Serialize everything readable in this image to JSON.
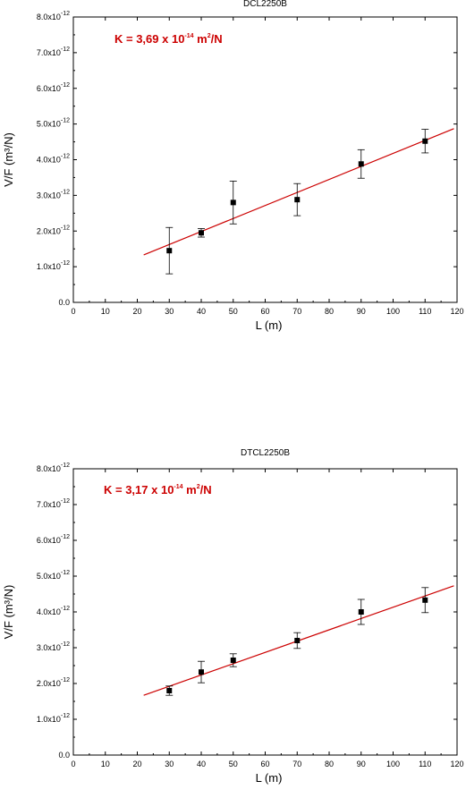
{
  "chart_data": [
    {
      "type": "scatter",
      "title": "DCL2250B",
      "xlabel": "L (m)",
      "ylabel": "V/F (m³/N)",
      "xlim": [
        0,
        120
      ],
      "ylim": [
        0,
        8e-12
      ],
      "xticks": [
        "0",
        "10",
        "20",
        "30",
        "40",
        "50",
        "60",
        "70",
        "80",
        "90",
        "100",
        "110",
        "120"
      ],
      "yticks": [
        "0.0",
        "1.0x10",
        "2.0x10",
        "3.0x10",
        "4.0x10",
        "5.0x10",
        "6.0x10",
        "7.0x10",
        "8.0x10"
      ],
      "ytick_exponent": "-12",
      "annotation": {
        "prefix": "K = 3,69 x 10",
        "exponent": "-14",
        "unit_base": " m",
        "unit_exp": "2",
        "suffix": "/N",
        "color": "#cc0000"
      },
      "series": [
        {
          "x": [
            30,
            40,
            50,
            70,
            90,
            110
          ],
          "y": [
            1.45e-12,
            1.95e-12,
            2.8e-12,
            2.88e-12,
            3.88e-12,
            4.52e-12
          ],
          "err": [
            6.5e-13,
            1.2e-13,
            6e-13,
            4.5e-13,
            4e-13,
            3.3e-13
          ],
          "color": "#000000"
        }
      ],
      "fit": {
        "x": [
          22,
          119
        ],
        "y": [
          1.33e-12,
          4.87e-12
        ],
        "color": "#cc0000"
      }
    },
    {
      "type": "scatter",
      "title": "DTCL2250B",
      "xlabel": "L (m)",
      "ylabel": "V/F (m³/N)",
      "xlim": [
        0,
        120
      ],
      "ylim": [
        0,
        8e-12
      ],
      "xticks": [
        "0",
        "10",
        "20",
        "30",
        "40",
        "50",
        "60",
        "70",
        "80",
        "90",
        "100",
        "110",
        "120"
      ],
      "yticks": [
        "0.0",
        "1.0x10",
        "2.0x10",
        "3.0x10",
        "4.0x10",
        "5.0x10",
        "6.0x10",
        "7.0x10",
        "8.0x10"
      ],
      "ytick_exponent": "-12",
      "annotation": {
        "prefix": "K = 3,17 x 10",
        "exponent": "-14",
        "unit_base": " m",
        "unit_exp": "2",
        "suffix": "/N",
        "color": "#cc0000"
      },
      "series": [
        {
          "x": [
            30,
            40,
            50,
            70,
            90,
            110
          ],
          "y": [
            1.8e-12,
            2.32e-12,
            2.65e-12,
            3.2e-12,
            4e-12,
            4.33e-12
          ],
          "err": [
            1.3e-13,
            3e-13,
            1.8e-13,
            2.2e-13,
            3.5e-13,
            3.5e-13
          ],
          "color": "#000000"
        }
      ],
      "fit": {
        "x": [
          22,
          119
        ],
        "y": [
          1.67e-12,
          4.73e-12
        ],
        "color": "#cc0000"
      }
    }
  ]
}
